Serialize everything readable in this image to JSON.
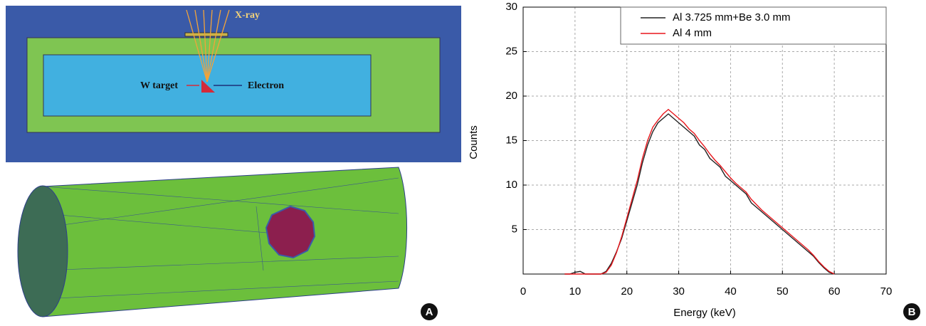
{
  "diagram": {
    "xray_label": "X-ray",
    "target_label": "W target",
    "electron_label": "Electron"
  },
  "panels": [
    "A",
    "B"
  ],
  "chart_data": {
    "type": "line",
    "xlabel": "Energy (keV)",
    "ylabel": "Counts",
    "x": [
      8,
      9,
      10,
      11,
      12,
      13,
      14,
      15,
      16,
      17,
      18,
      19,
      20,
      21,
      22,
      23,
      24,
      25,
      26,
      27,
      28,
      29,
      30,
      31,
      32,
      33,
      34,
      35,
      36,
      37,
      38,
      39,
      40,
      41,
      42,
      43,
      44,
      45,
      46,
      47,
      48,
      49,
      50,
      51,
      52,
      53,
      54,
      55,
      56,
      57,
      58,
      59,
      60
    ],
    "series": [
      {
        "name": "Al 3.725 mm+Be 3.0 mm",
        "color": "#222222",
        "values": [
          0,
          0,
          0.2,
          0.3,
          0,
          0,
          0,
          0,
          0.3,
          1.2,
          2.5,
          4,
          6,
          8,
          10,
          12.5,
          14.5,
          16,
          17,
          17.5,
          18,
          17.5,
          17,
          16.5,
          16,
          15.5,
          14.5,
          14,
          13,
          12.5,
          12,
          11,
          10.5,
          10,
          9.5,
          9,
          8,
          7.5,
          7,
          6.5,
          6,
          5.5,
          5,
          4.5,
          4,
          3.5,
          3,
          2.5,
          2,
          1.3,
          0.7,
          0.2,
          0
        ]
      },
      {
        "name": "Al 4 mm",
        "color": "#e8161c",
        "values": [
          0,
          0,
          0,
          0,
          0,
          0,
          0,
          0,
          0.2,
          1,
          2.4,
          4.2,
          6.3,
          8.4,
          10.5,
          13,
          15,
          16.5,
          17.3,
          18,
          18.5,
          18,
          17.5,
          17,
          16.3,
          15.8,
          15,
          14.3,
          13.5,
          12.8,
          12.2,
          11.5,
          10.8,
          10.2,
          9.7,
          9.2,
          8.4,
          7.8,
          7.2,
          6.7,
          6.2,
          5.7,
          5.2,
          4.7,
          4.2,
          3.7,
          3.2,
          2.7,
          2.1,
          1.4,
          0.8,
          0.3,
          0
        ]
      }
    ],
    "xlim": [
      0,
      70
    ],
    "xticks": [
      0,
      10,
      20,
      30,
      40,
      50,
      60,
      70
    ],
    "ylim": [
      0,
      30
    ],
    "yticks": [
      5,
      10,
      15,
      20,
      25,
      30
    ],
    "grid": true,
    "legend": "top-right"
  }
}
